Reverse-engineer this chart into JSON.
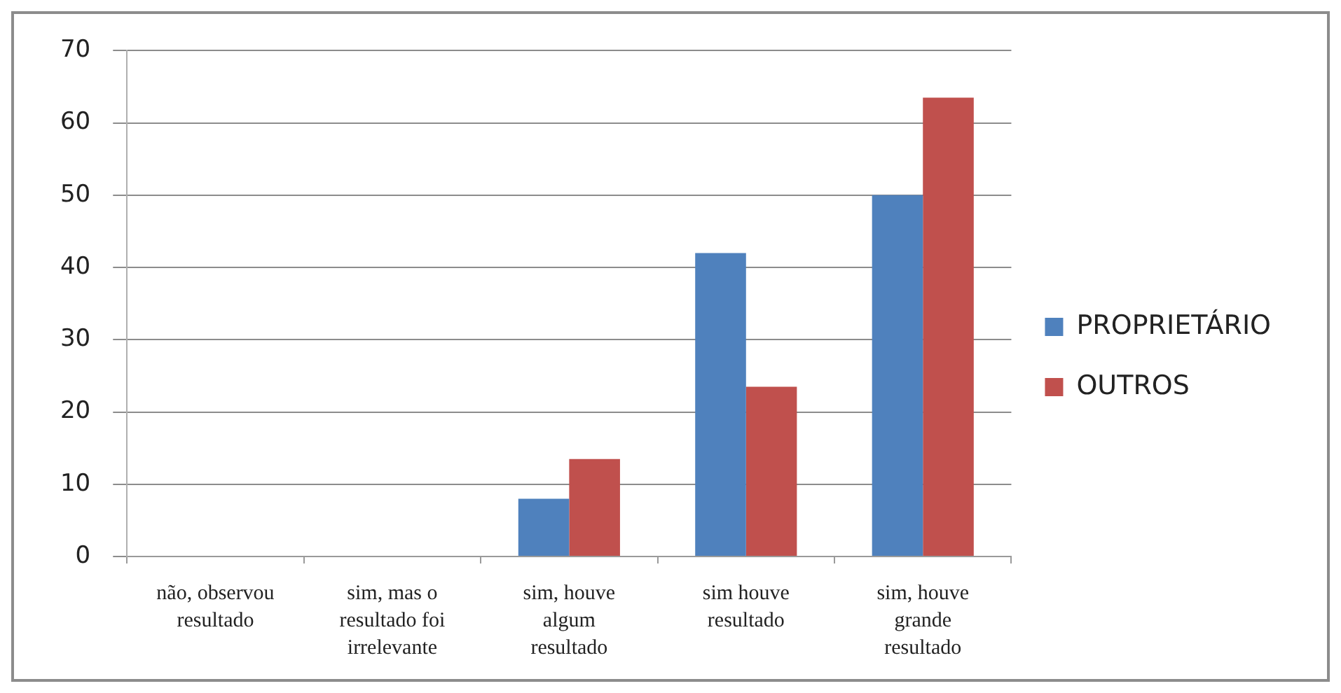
{
  "chart_data": {
    "type": "bar",
    "categories": [
      "não, observou resultado",
      "sim, mas o resultado foi irrelevante",
      "sim, houve algum resultado",
      "sim houve resultado",
      "sim, houve grande resultado"
    ],
    "series": [
      {
        "name": "PROPRIETÁRIO",
        "color": "#4f81bd",
        "values": [
          0,
          0,
          8,
          42,
          50
        ]
      },
      {
        "name": "OUTROS",
        "color": "#c0504d",
        "values": [
          0,
          0,
          13.5,
          23.5,
          63.5
        ]
      }
    ],
    "ylim": [
      0,
      70
    ],
    "yticks": [
      0,
      10,
      20,
      30,
      40,
      50,
      60,
      70
    ],
    "grid": "y",
    "legend": "right"
  }
}
